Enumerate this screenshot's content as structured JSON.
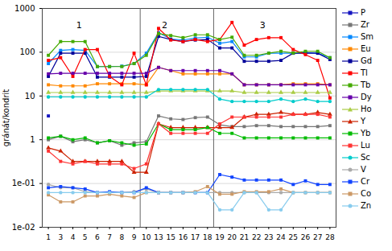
{
  "chart_data": {
    "type": "line",
    "categories": [
      1,
      3,
      4,
      5,
      6,
      7,
      8,
      9,
      10,
      13,
      15,
      16,
      17,
      18,
      19,
      20,
      21,
      22,
      23,
      24,
      25,
      26,
      27,
      28
    ],
    "ylabel": "gránát/kondrit",
    "log": "y",
    "ylim": [
      0.01,
      1000
    ],
    "yticks": [
      {
        "value": 0.01,
        "label": "1e-02"
      },
      {
        "value": 0.1,
        "label": "1e-01"
      },
      1,
      10,
      100,
      1000
    ],
    "grid": true,
    "legend": "right",
    "vlines": [
      9.5,
      18.5
    ],
    "annotations": [
      {
        "text": "1",
        "x": 4.5,
        "y": 500
      },
      {
        "text": "2",
        "x": 14.0,
        "y": 500
      },
      {
        "text": "3",
        "x": 22.5,
        "y": 500
      }
    ],
    "series": [
      {
        "name": "P",
        "color": "#1515c0",
        "marker": "square",
        "values": [
          3.5,
          null,
          null,
          null,
          null,
          null,
          null,
          null,
          null,
          null,
          null,
          null,
          null,
          null,
          null,
          null,
          null,
          null,
          null,
          null,
          null,
          null,
          null,
          null
        ]
      },
      {
        "name": "Zr",
        "color": "#777777",
        "marker": "square",
        "values": [
          1.0,
          1.2,
          0.9,
          1.0,
          0.85,
          0.95,
          0.75,
          0.85,
          0.9,
          3.5,
          3.0,
          2.9,
          3.2,
          3.3,
          2.2,
          2.0,
          2.0,
          2.1,
          2.1,
          2.0,
          2.0,
          2.0,
          2.0,
          2.1
        ]
      },
      {
        "name": "Sm",
        "color": "#0088ff",
        "marker": "square",
        "values": [
          55,
          110,
          115,
          110,
          47,
          47,
          48,
          55,
          95,
          280,
          200,
          190,
          210,
          220,
          160,
          175,
          78,
          78,
          95,
          95,
          95,
          98,
          95,
          75
        ]
      },
      {
        "name": "Eu",
        "color": "#ff8800",
        "marker": "square",
        "values": [
          18,
          17,
          17,
          17,
          19,
          19,
          19,
          19,
          18,
          45,
          38,
          32,
          32,
          32,
          32,
          32,
          18,
          18,
          18,
          18,
          19,
          19,
          19,
          18
        ]
      },
      {
        "name": "Gd",
        "color": "#000099",
        "marker": "square",
        "values": [
          28,
          95,
          95,
          95,
          27,
          27,
          27,
          27,
          28,
          230,
          195,
          175,
          190,
          195,
          125,
          125,
          62,
          62,
          62,
          65,
          95,
          96,
          95,
          68
        ]
      },
      {
        "name": "Tl",
        "color": "#ff0000",
        "marker": "square",
        "values": [
          65,
          75,
          28,
          115,
          115,
          28,
          18,
          95,
          18,
          350,
          190,
          175,
          195,
          175,
          195,
          480,
          145,
          195,
          215,
          215,
          115,
          88,
          65,
          9
        ]
      },
      {
        "name": "Tb",
        "color": "#44aa00",
        "marker": "square",
        "values": [
          85,
          175,
          175,
          175,
          47,
          47,
          47,
          55,
          85,
          265,
          240,
          215,
          250,
          250,
          195,
          220,
          85,
          85,
          95,
          105,
          96,
          105,
          105,
          75
        ]
      },
      {
        "name": "Dy",
        "color": "#6600aa",
        "marker": "square",
        "values": [
          32,
          33,
          33,
          33,
          33,
          33,
          33,
          33,
          33,
          45,
          38,
          38,
          38,
          38,
          38,
          32,
          18,
          18,
          18,
          18,
          18,
          18,
          18,
          18
        ]
      },
      {
        "name": "Ho",
        "color": "#aacc44",
        "marker": "triangle",
        "values": [
          12,
          12,
          12,
          12,
          12,
          12,
          12,
          12,
          12,
          13,
          13,
          13,
          13,
          13,
          13,
          13,
          12,
          12,
          12,
          12,
          12,
          12,
          12,
          12
        ]
      },
      {
        "name": "Y",
        "color": "#cc2200",
        "marker": "triangle",
        "values": [
          0.65,
          0.55,
          0.32,
          0.32,
          0.32,
          0.32,
          0.32,
          0.18,
          0.18,
          2.3,
          1.9,
          1.9,
          1.9,
          1.9,
          1.9,
          1.9,
          3.3,
          3.8,
          3.8,
          4.2,
          3.8,
          3.8,
          4.2,
          3.8
        ]
      },
      {
        "name": "Yb",
        "color": "#00bb00",
        "marker": "square",
        "values": [
          1.1,
          1.2,
          1.0,
          1.1,
          0.85,
          0.95,
          0.85,
          0.75,
          0.8,
          2.3,
          1.7,
          1.7,
          1.7,
          1.9,
          1.4,
          1.4,
          1.1,
          1.1,
          1.1,
          1.1,
          1.1,
          1.1,
          1.1,
          1.1
        ]
      },
      {
        "name": "Lu",
        "color": "#ff3333",
        "marker": "square",
        "values": [
          0.55,
          0.32,
          0.28,
          0.32,
          0.28,
          0.28,
          0.28,
          0.22,
          0.28,
          2.3,
          1.4,
          1.4,
          1.4,
          1.4,
          2.3,
          3.3,
          3.3,
          3.3,
          3.3,
          3.3,
          3.8,
          3.8,
          3.8,
          3.3
        ]
      },
      {
        "name": "Sc",
        "color": "#00cccc",
        "marker": "circle",
        "values": [
          9.5,
          9.5,
          9.5,
          9.5,
          9.5,
          9.5,
          9.5,
          9.5,
          9.5,
          14,
          14,
          14,
          14,
          14,
          8.5,
          7.5,
          7.5,
          7.5,
          7.5,
          8.5,
          7.5,
          8.5,
          7.5,
          7.5
        ]
      },
      {
        "name": "V",
        "color": "#aaaaaa",
        "marker": "circle",
        "values": [
          0.095,
          0.08,
          0.08,
          0.065,
          0.062,
          0.062,
          0.062,
          0.065,
          0.075,
          0.062,
          0.062,
          0.062,
          0.062,
          0.062,
          0.062,
          0.062,
          0.062,
          0.062,
          0.062,
          0.062,
          0.062,
          0.062,
          0.062,
          0.062
        ]
      },
      {
        "name": "Cr",
        "color": "#1144ff",
        "marker": "square",
        "values": [
          0.08,
          0.085,
          0.08,
          0.075,
          0.062,
          0.065,
          0.062,
          0.062,
          0.08,
          0.062,
          0.062,
          0.062,
          0.062,
          0.062,
          0.16,
          0.14,
          0.12,
          0.12,
          0.12,
          0.12,
          0.095,
          0.115,
          0.095,
          0.095
        ]
      },
      {
        "name": "Co",
        "color": "#cc9966",
        "marker": "square",
        "values": [
          0.055,
          0.038,
          0.038,
          0.052,
          0.052,
          0.057,
          0.052,
          0.048,
          0.062,
          0.062,
          0.062,
          0.062,
          0.065,
          0.085,
          0.057,
          0.057,
          0.065,
          0.065,
          0.065,
          0.075,
          0.062,
          0.062,
          0.062,
          0.062
        ]
      },
      {
        "name": "Zn",
        "color": "#88ccee",
        "marker": "circle",
        "values": [
          0.062,
          0.062,
          0.062,
          0.062,
          0.062,
          0.062,
          0.062,
          0.062,
          0.062,
          0.062,
          0.062,
          0.062,
          0.062,
          0.062,
          0.025,
          0.025,
          0.062,
          0.062,
          0.025,
          0.025,
          0.062,
          0.062,
          0.062,
          0.062
        ]
      }
    ]
  }
}
